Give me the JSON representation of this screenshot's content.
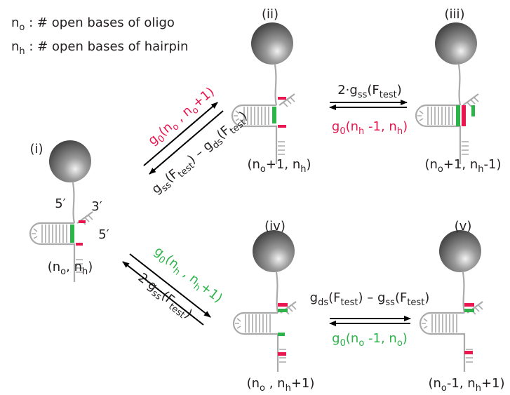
{
  "legend": [
    [
      {
        "text": "n"
      },
      {
        "text": "o",
        "sub": true
      },
      {
        "text": " : # open bases of oligo"
      }
    ],
    [
      {
        "text": "n"
      },
      {
        "text": "h",
        "sub": true
      },
      {
        "text": " : # open bases of hairpin"
      }
    ]
  ],
  "states": [
    {
      "label": "(i)",
      "coords": [
        {
          "text": "(n"
        },
        {
          "text": "o",
          "sub": true
        },
        {
          "text": ", n"
        },
        {
          "text": "h",
          "sub": true
        },
        {
          "text": ")"
        }
      ]
    },
    {
      "label": "(ii)",
      "coords": [
        {
          "text": "(n"
        },
        {
          "text": "o",
          "sub": true
        },
        {
          "text": "+1, n"
        },
        {
          "text": "h",
          "sub": true
        },
        {
          "text": ")"
        }
      ]
    },
    {
      "label": "(iii)",
      "coords": [
        {
          "text": "(n"
        },
        {
          "text": "o",
          "sub": true
        },
        {
          "text": "+1, n"
        },
        {
          "text": "h",
          "sub": true
        },
        {
          "text": "-1)"
        }
      ]
    },
    {
      "label": "(iv)",
      "coords": [
        {
          "text": "(n"
        },
        {
          "text": "o",
          "sub": true
        },
        {
          "text": " , n"
        },
        {
          "text": "h",
          "sub": true
        },
        {
          "text": "+1)"
        }
      ]
    },
    {
      "label": "(v)",
      "coords": [
        {
          "text": "(n"
        },
        {
          "text": "o",
          "sub": true
        },
        {
          "text": "-1, n"
        },
        {
          "text": "h",
          "sub": true
        },
        {
          "text": "+1)"
        }
      ]
    }
  ],
  "ends": [
    "5′",
    "3′",
    "5′"
  ],
  "rates": [
    {
      "color": "#e8174f",
      "parts": [
        {
          "text": "g"
        },
        {
          "text": "0",
          "sub": true
        },
        {
          "text": "(n"
        },
        {
          "text": "o",
          "sub": true
        },
        {
          "text": " , n"
        },
        {
          "text": "o",
          "sub": true
        },
        {
          "text": "+1)"
        }
      ]
    },
    {
      "color": "#231f20",
      "parts": [
        {
          "text": "g"
        },
        {
          "text": "ss",
          "sub": true
        },
        {
          "text": "(F"
        },
        {
          "text": "test",
          "sub": true
        },
        {
          "text": ") – g"
        },
        {
          "text": "ds",
          "sub": true
        },
        {
          "text": "(F"
        },
        {
          "text": "test",
          "sub": true
        },
        {
          "text": ")"
        }
      ]
    },
    {
      "color": "#231f20",
      "parts": [
        {
          "text": "2·g"
        },
        {
          "text": "ss",
          "sub": true
        },
        {
          "text": "(F"
        },
        {
          "text": "test",
          "sub": true
        },
        {
          "text": ")"
        }
      ]
    },
    {
      "color": "#e8174f",
      "parts": [
        {
          "text": "g"
        },
        {
          "text": "0",
          "sub": true
        },
        {
          "text": "(n"
        },
        {
          "text": "h",
          "sub": true
        },
        {
          "text": " -1, n"
        },
        {
          "text": "h",
          "sub": true
        },
        {
          "text": ")"
        }
      ]
    },
    {
      "color": "#2db34a",
      "parts": [
        {
          "text": "g"
        },
        {
          "text": "0",
          "sub": true
        },
        {
          "text": "(n"
        },
        {
          "text": "h",
          "sub": true
        },
        {
          "text": " , n"
        },
        {
          "text": "h",
          "sub": true
        },
        {
          "text": "+1)"
        }
      ]
    },
    {
      "color": "#231f20",
      "parts": [
        {
          "text": "2·g"
        },
        {
          "text": "ss",
          "sub": true
        },
        {
          "text": "(F"
        },
        {
          "text": "test",
          "sub": true
        },
        {
          "text": ")"
        }
      ]
    },
    {
      "color": "#231f20",
      "parts": [
        {
          "text": "g"
        },
        {
          "text": "ds",
          "sub": true
        },
        {
          "text": "(F"
        },
        {
          "text": "test",
          "sub": true
        },
        {
          "text": ") – g"
        },
        {
          "text": "ss",
          "sub": true
        },
        {
          "text": "(F"
        },
        {
          "text": "test",
          "sub": true
        },
        {
          "text": ")"
        }
      ]
    },
    {
      "color": "#2db34a",
      "parts": [
        {
          "text": "g"
        },
        {
          "text": "0",
          "sub": true
        },
        {
          "text": "(n"
        },
        {
          "text": "o",
          "sub": true
        },
        {
          "text": " -1, n"
        },
        {
          "text": "o",
          "sub": true
        },
        {
          "text": ")"
        }
      ]
    }
  ]
}
